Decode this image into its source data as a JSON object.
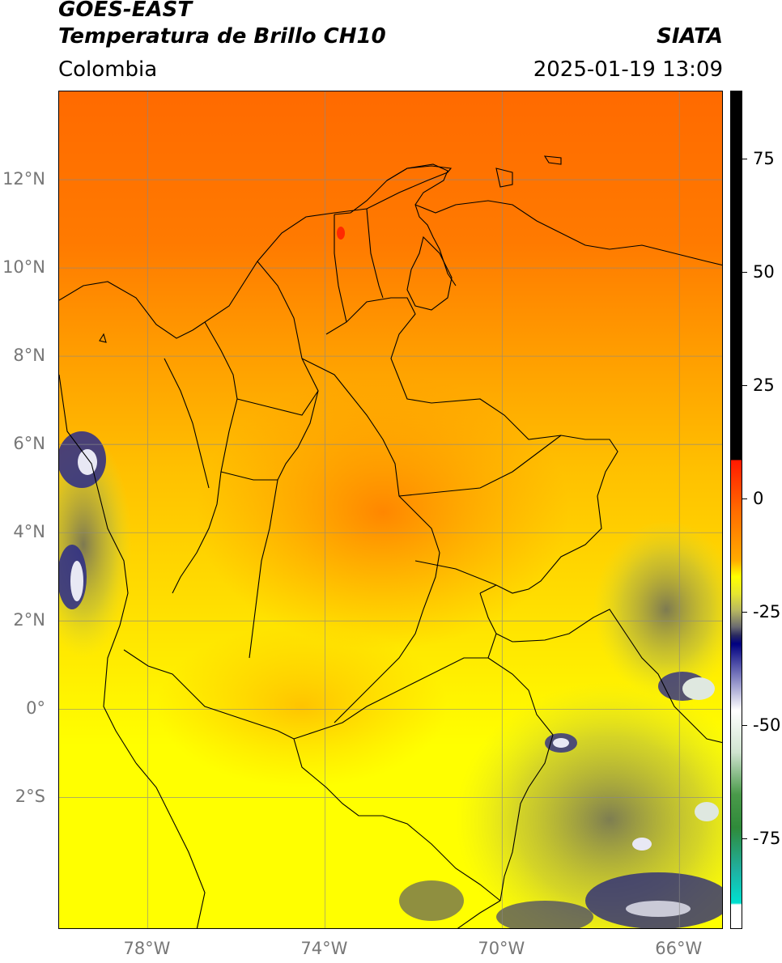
{
  "header": {
    "satellite": "GOES-EAST",
    "product": "Temperatura de Brillo CH10",
    "region": "Colombia",
    "agency": "SIATA",
    "datetime": "2025-01-19 13:09"
  },
  "map": {
    "lon_range": [
      -80,
      -65
    ],
    "lat_range": [
      -5,
      14
    ],
    "lat_ticks": [
      {
        "value": 12,
        "label": "12°N"
      },
      {
        "value": 10,
        "label": "10°N"
      },
      {
        "value": 8,
        "label": "8°N"
      },
      {
        "value": 6,
        "label": "6°N"
      },
      {
        "value": 4,
        "label": "4°N"
      },
      {
        "value": 2,
        "label": "2°N"
      },
      {
        "value": 0,
        "label": "0°"
      },
      {
        "value": -2,
        "label": "2°S"
      }
    ],
    "lon_ticks": [
      {
        "value": -78,
        "label": "78°W"
      },
      {
        "value": -74,
        "label": "74°W"
      },
      {
        "value": -70,
        "label": "70°W"
      },
      {
        "value": -66,
        "label": "66°W"
      }
    ],
    "grid": true
  },
  "colorbar": {
    "range": [
      -95,
      90
    ],
    "ticks": [
      {
        "value": 75,
        "label": "75"
      },
      {
        "value": 50,
        "label": "50"
      },
      {
        "value": 25,
        "label": "25"
      },
      {
        "value": 0,
        "label": "0"
      },
      {
        "value": -25,
        "label": "-25"
      },
      {
        "value": -50,
        "label": "-50"
      },
      {
        "value": -75,
        "label": "-75"
      }
    ],
    "colors": {
      "black": "#000000",
      "red": "#ff1a00",
      "orange": "#ff8c00",
      "yellow": "#ffff00",
      "olive": "#8a8a5a",
      "navy": "#000080",
      "white": "#ffffff",
      "green": "#2f8a3a",
      "cyan": "#00e0d0"
    }
  }
}
